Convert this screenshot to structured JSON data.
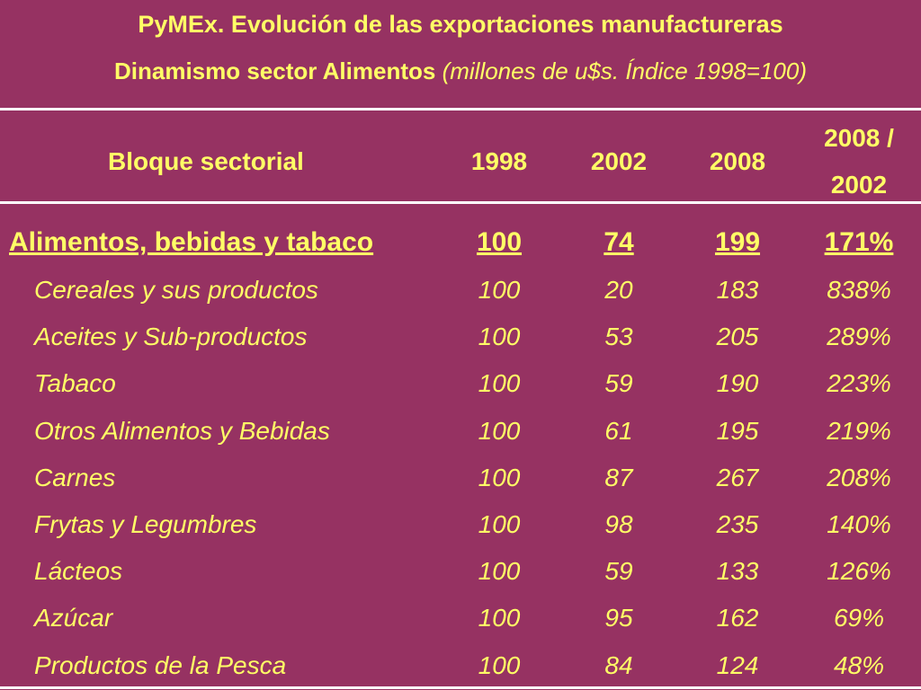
{
  "header": {
    "title": "PyMEx. Evolución de las exportaciones manufactureras",
    "subtitle": "Dinamismo sector Alimentos",
    "subtitle_note": "(millones de u$s. Índice 1998=100)"
  },
  "table": {
    "columns": [
      "Bloque sectorial",
      "1998",
      "2002",
      "2008",
      "2008 / 2002"
    ],
    "rows": [
      [
        "Alimentos, bebidas y tabaco",
        "100",
        "74",
        "199",
        "171%"
      ],
      [
        "Cereales y sus productos",
        "100",
        "20",
        "183",
        "838%"
      ],
      [
        "Aceites y Sub-productos",
        "100",
        "53",
        "205",
        "289%"
      ],
      [
        "Tabaco",
        "100",
        "59",
        "190",
        "223%"
      ],
      [
        "Otros Alimentos y Bebidas",
        "100",
        "61",
        "195",
        "219%"
      ],
      [
        "Carnes",
        "100",
        "87",
        "267",
        "208%"
      ],
      [
        "Frytas y Legumbres",
        "100",
        "98",
        "235",
        "140%"
      ],
      [
        "Lácteos",
        "100",
        "59",
        "133",
        "126%"
      ],
      [
        "Azúcar",
        "100",
        "95",
        "162",
        "69%"
      ],
      [
        "Productos de la Pesca",
        "100",
        "84",
        "124",
        "48%"
      ]
    ]
  }
}
